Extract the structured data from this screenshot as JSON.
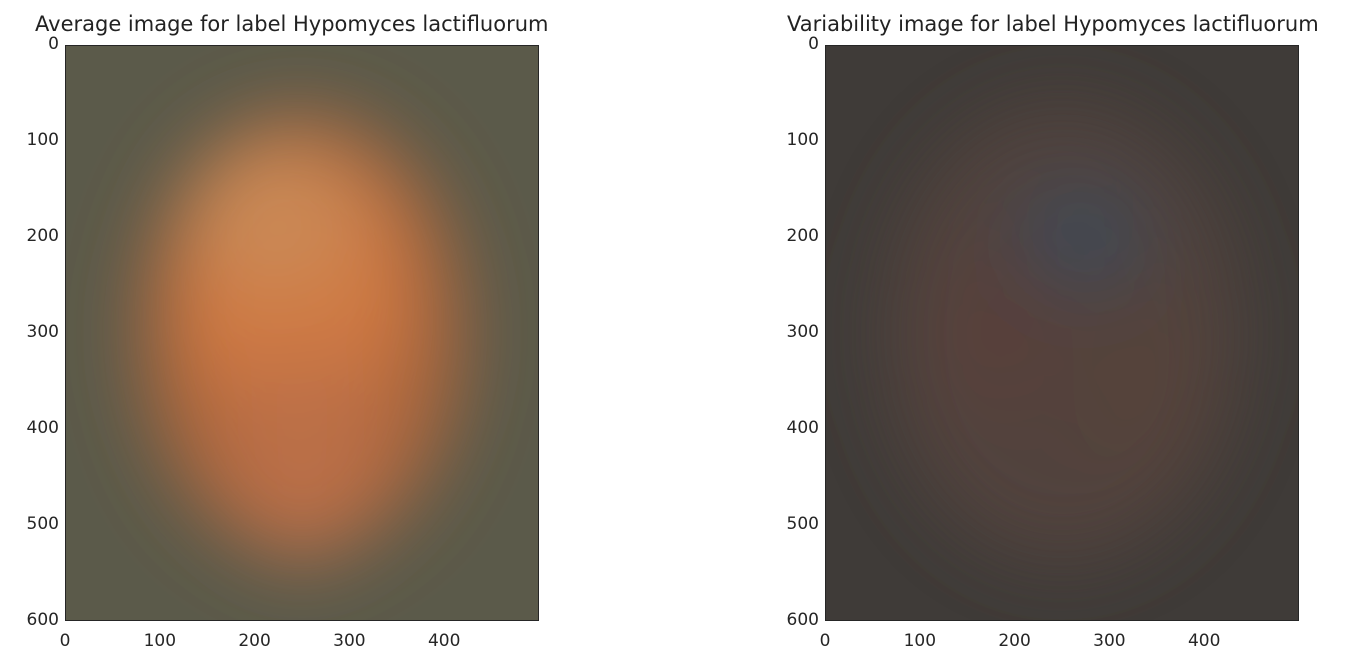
{
  "chart_data": [
    {
      "type": "heatmap",
      "title": "Average image for label Hypomyces lactifluorum",
      "xlabel": "",
      "ylabel": "",
      "xlim": [
        0,
        500
      ],
      "ylim": [
        600,
        0
      ],
      "x_ticks": [
        0,
        100,
        200,
        300,
        400
      ],
      "y_ticks": [
        0,
        100,
        200,
        300,
        400,
        500,
        600
      ],
      "grid": false,
      "background_color": "#5b5a4a",
      "regions": [
        {
          "cx": 250,
          "cy": 300,
          "rx": 170,
          "ry": 230,
          "color": "#b8683a"
        },
        {
          "cx": 240,
          "cy": 250,
          "rx": 120,
          "ry": 140,
          "color": "#d47c44"
        },
        {
          "cx": 220,
          "cy": 180,
          "rx": 90,
          "ry": 80,
          "color": "#c98a56"
        },
        {
          "cx": 250,
          "cy": 430,
          "rx": 80,
          "ry": 110,
          "color": "#bb7049"
        }
      ]
    },
    {
      "type": "heatmap",
      "title": "Variability image for label Hypomyces lactifluorum",
      "xlabel": "",
      "ylabel": "",
      "xlim": [
        0,
        500
      ],
      "ylim": [
        600,
        0
      ],
      "x_ticks": [
        0,
        100,
        200,
        300,
        400
      ],
      "y_ticks": [
        0,
        100,
        200,
        300,
        400,
        500,
        600
      ],
      "grid": false,
      "background_color": "#3f3b38",
      "regions": [
        {
          "cx": 250,
          "cy": 300,
          "rx": 190,
          "ry": 240,
          "color": "#53443f"
        },
        {
          "cx": 270,
          "cy": 200,
          "rx": 70,
          "ry": 60,
          "color": "#3e4a55"
        },
        {
          "cx": 180,
          "cy": 300,
          "rx": 60,
          "ry": 90,
          "color": "#5a3f3a"
        },
        {
          "cx": 330,
          "cy": 350,
          "rx": 70,
          "ry": 100,
          "color": "#56423a"
        }
      ]
    }
  ]
}
